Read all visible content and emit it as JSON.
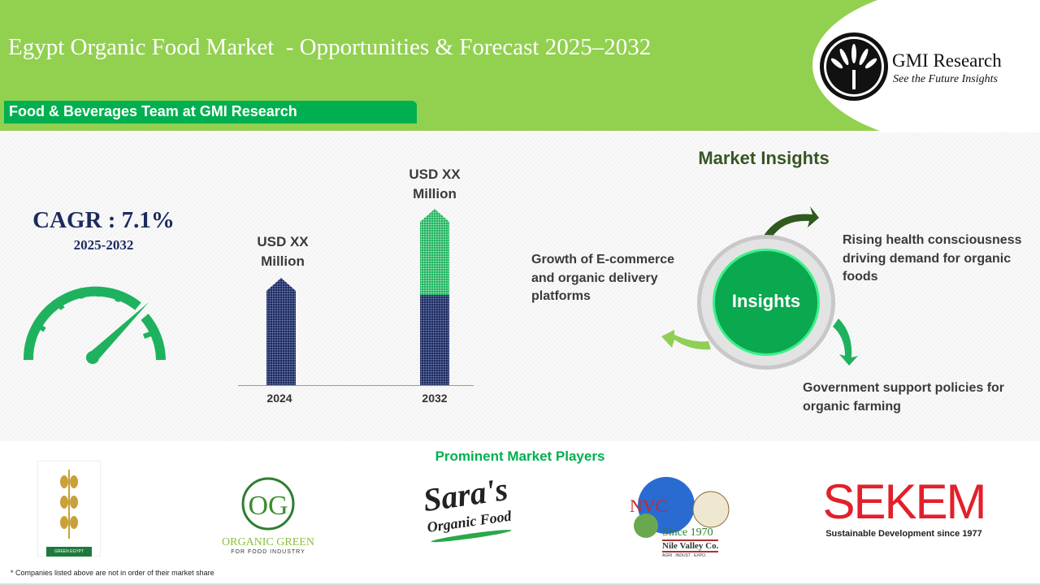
{
  "header": {
    "title": "Egypt Organic Food Market  - Opportunities & Forecast 2025–2032",
    "team": "Food & Beverages Team at GMI Research",
    "logo": {
      "name": "GMI Research",
      "tagline": "See the Future Insights"
    }
  },
  "cagr": {
    "label": "CAGR : 7.1%",
    "period": "2025-2032",
    "icon": "speedometer-icon"
  },
  "market_size": {
    "bars": [
      {
        "year": "2024",
        "value_label_1": "USD XX",
        "value_label_2": "Million"
      },
      {
        "year": "2032",
        "value_label_1": "USD XX",
        "value_label_2": "Million"
      }
    ],
    "colors": {
      "base": "#1c2a5e",
      "growth": "#1fb25e"
    }
  },
  "insights": {
    "title": "Market Insights",
    "center": "Insights",
    "items": [
      "Rising health consciousness driving demand for organic foods",
      "Government support policies for organic farming",
      "Growth of E-commerce and organic delivery platforms"
    ]
  },
  "players": {
    "title": "Prominent Market Players",
    "logos": [
      {
        "name": "GREEN EGYPT"
      },
      {
        "name": "ORGANIC GREEN",
        "sub": "FOR FOOD INDUSTRY"
      },
      {
        "name": "Sara's",
        "sub": "Organic Food"
      },
      {
        "name": "NVC",
        "sub": "Since 1970",
        "sub2": "Nile Valley Co.",
        "sub3": "AGRI . INDUST . EXPO."
      },
      {
        "name": "SEKEM",
        "sub": "Sustainable Development since 1977"
      }
    ],
    "footnote": "* Companies listed above are not in order of their market share"
  },
  "colors": {
    "header": "#92d050",
    "accent": "#00b050",
    "navy": "#1c2a5e"
  }
}
